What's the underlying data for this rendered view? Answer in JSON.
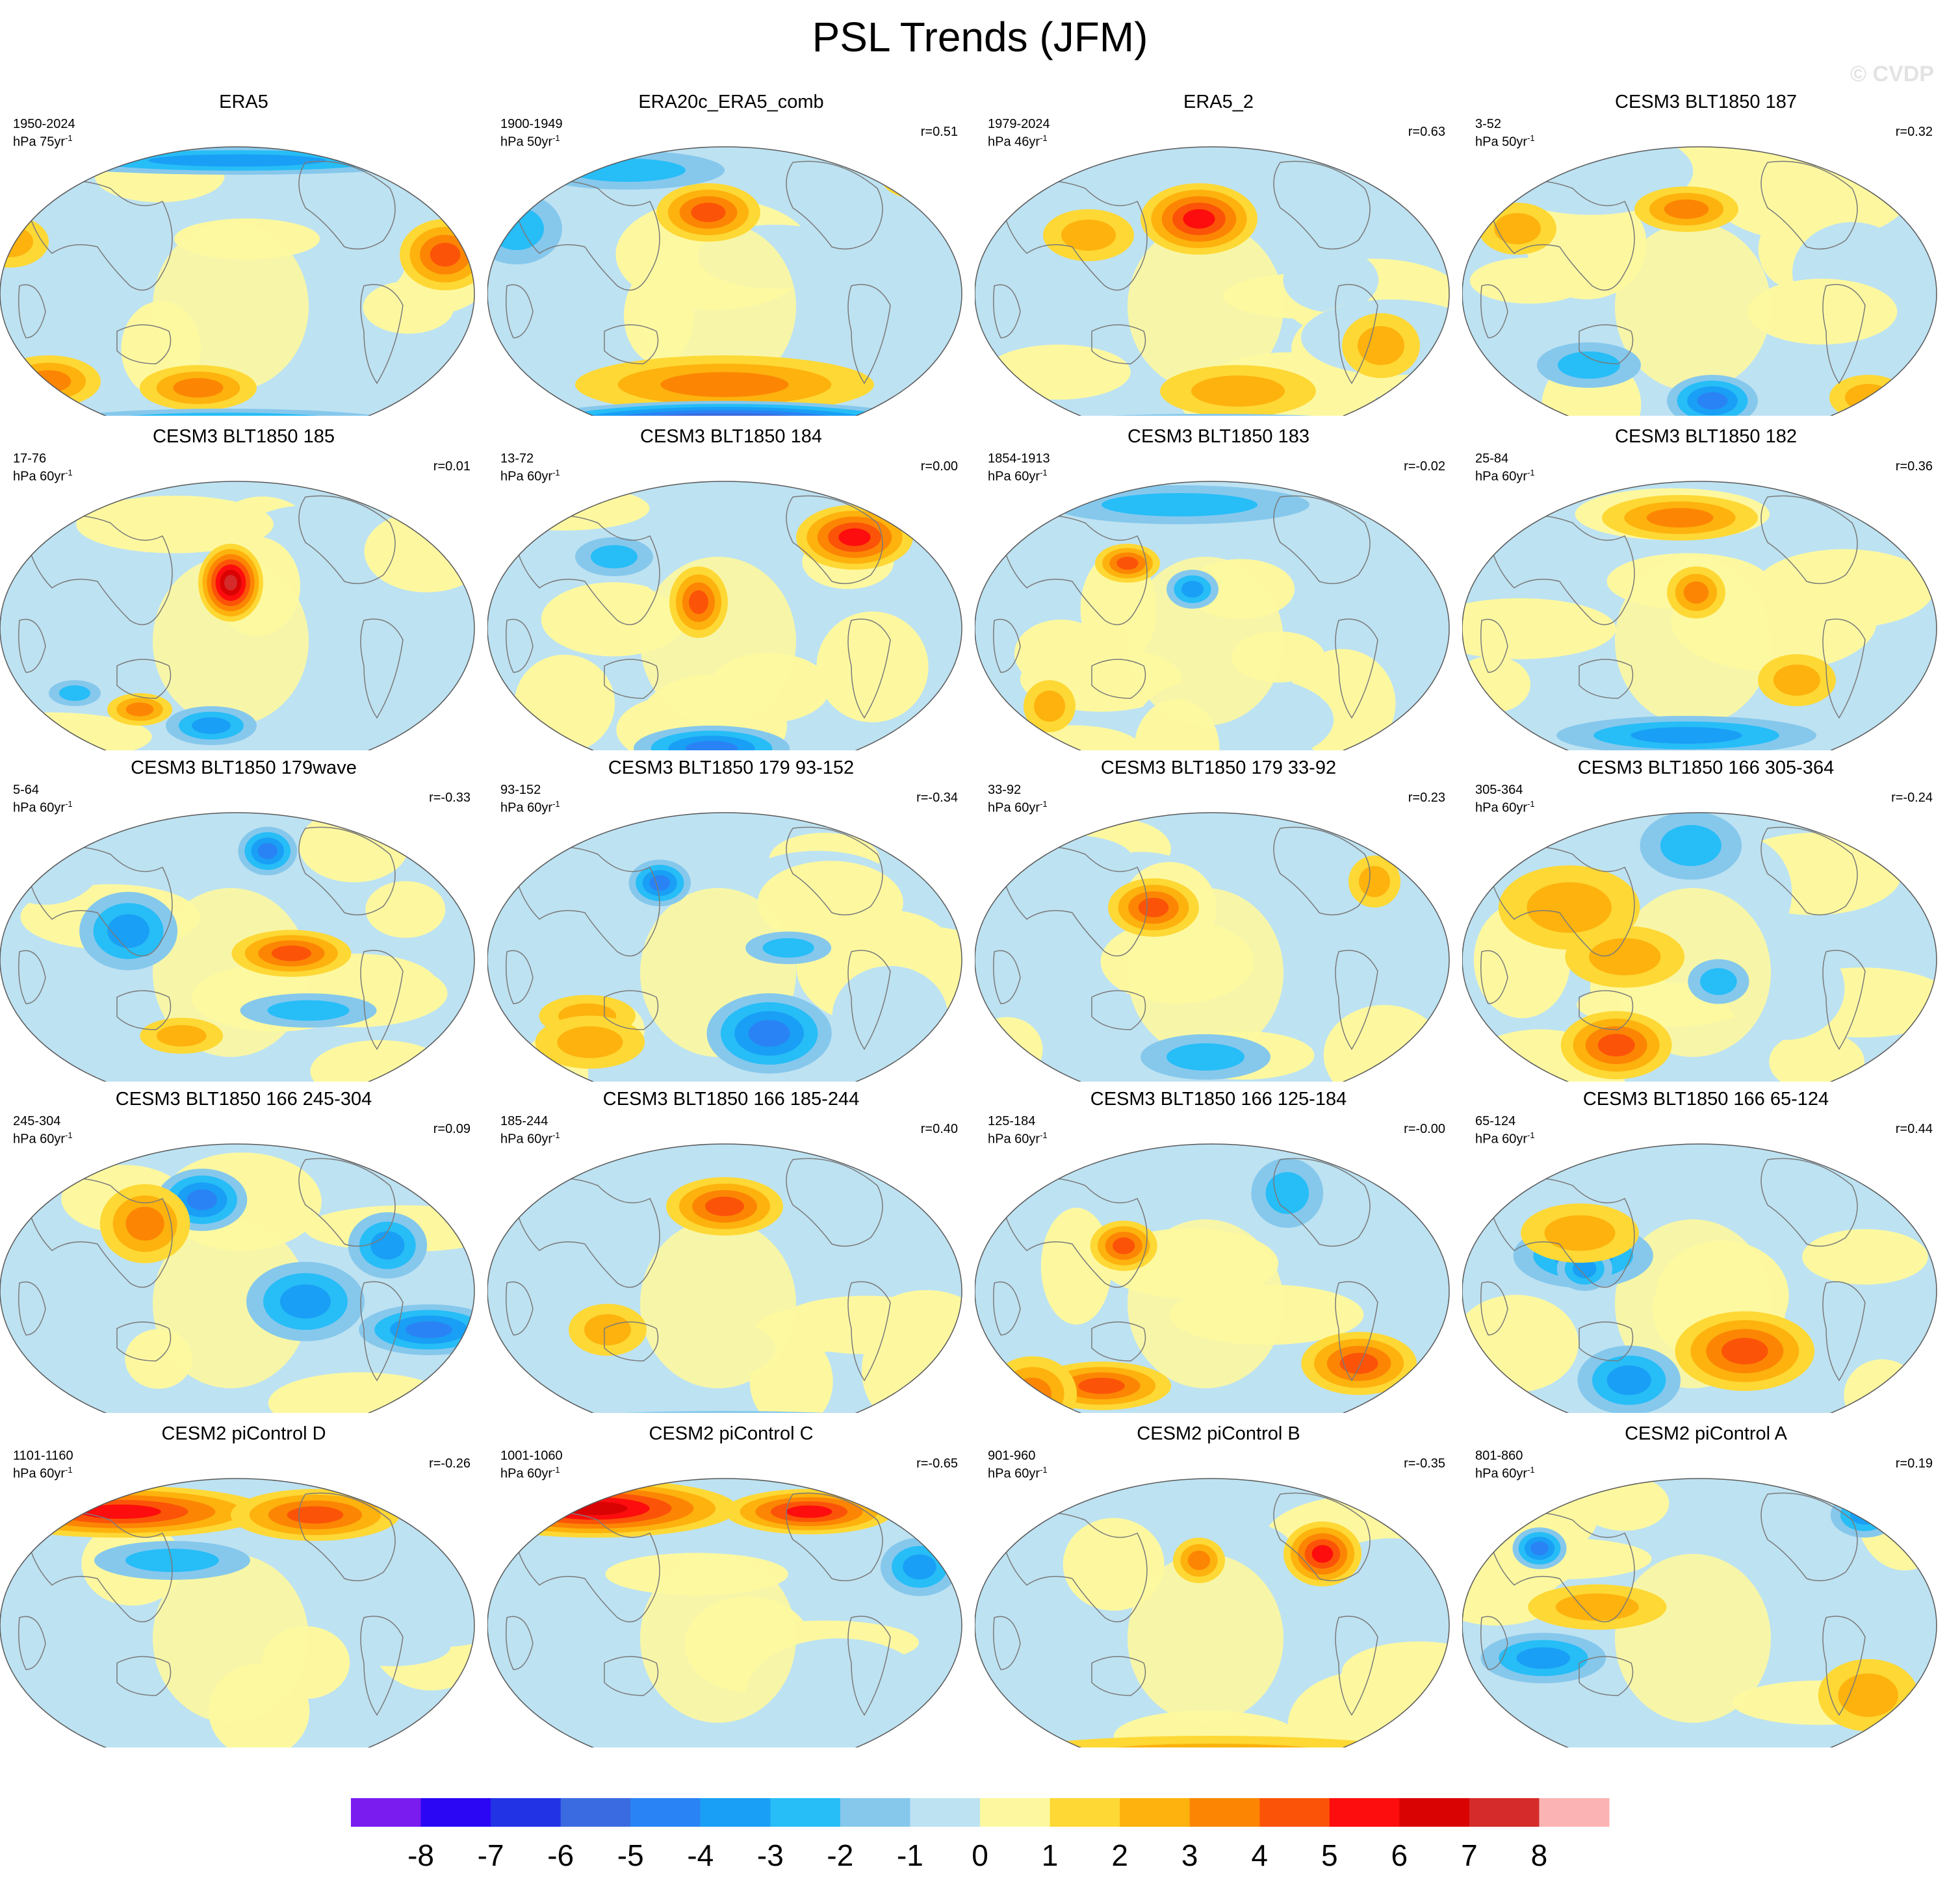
{
  "title": "PSL Trends (JFM)",
  "watermark": "© CVDP",
  "colors": {
    "scale": [
      "#7a1bf0",
      "#2a06f5",
      "#2233e6",
      "#3b6be0",
      "#2a83f4",
      "#199ff5",
      "#27bdf7",
      "#86c8ec",
      "#bde2f2",
      "#fdf8a0",
      "#fed835",
      "#fdb20e",
      "#fc8604",
      "#fb5408",
      "#fd0d0d",
      "#da0303",
      "#d52b2b",
      "#fcb3b3"
    ],
    "coastline": "#7a7a7a",
    "border": "#5a5a5a"
  },
  "colorbar": {
    "labels": [
      "-8",
      "-7",
      "-6",
      "-5",
      "-4",
      "-3",
      "-2",
      "-1",
      "0",
      "1",
      "2",
      "3",
      "4",
      "5",
      "6",
      "7",
      "8"
    ]
  },
  "panels": [
    {
      "title": "ERA5",
      "years": "1950-2024",
      "units": "hPa 75yr",
      "units_exp": "-1",
      "r": ""
    },
    {
      "title": "ERA20c_ERA5_comb",
      "years": "1900-1949",
      "units": "hPa 50yr",
      "units_exp": "-1",
      "r": "r=0.51"
    },
    {
      "title": "ERA5_2",
      "years": "1979-2024",
      "units": "hPa 46yr",
      "units_exp": "-1",
      "r": "r=0.63"
    },
    {
      "title": "CESM3 BLT1850 187",
      "years": "3-52",
      "units": "hPa 50yr",
      "units_exp": "-1",
      "r": "r=0.32"
    },
    {
      "title": "CESM3 BLT1850 185",
      "years": "17-76",
      "units": "hPa 60yr",
      "units_exp": "-1",
      "r": "r=0.01"
    },
    {
      "title": "CESM3 BLT1850 184",
      "years": "13-72",
      "units": "hPa 60yr",
      "units_exp": "-1",
      "r": "r=0.00"
    },
    {
      "title": "CESM3 BLT1850 183",
      "years": "1854-1913",
      "units": "hPa 60yr",
      "units_exp": "-1",
      "r": "r=-0.02"
    },
    {
      "title": "CESM3 BLT1850 182",
      "years": "25-84",
      "units": "hPa 60yr",
      "units_exp": "-1",
      "r": "r=0.36"
    },
    {
      "title": "CESM3 BLT1850 179wave",
      "years": "5-64",
      "units": "hPa 60yr",
      "units_exp": "-1",
      "r": "r=-0.33"
    },
    {
      "title": "CESM3 BLT1850 179 93-152",
      "years": "93-152",
      "units": "hPa 60yr",
      "units_exp": "-1",
      "r": "r=-0.34"
    },
    {
      "title": "CESM3 BLT1850 179 33-92",
      "years": "33-92",
      "units": "hPa 60yr",
      "units_exp": "-1",
      "r": "r=0.23"
    },
    {
      "title": "CESM3 BLT1850 166 305-364",
      "years": "305-364",
      "units": "hPa 60yr",
      "units_exp": "-1",
      "r": "r=-0.24"
    },
    {
      "title": "CESM3 BLT1850 166 245-304",
      "years": "245-304",
      "units": "hPa 60yr",
      "units_exp": "-1",
      "r": "r=0.09"
    },
    {
      "title": "CESM3 BLT1850 166 185-244",
      "years": "185-244",
      "units": "hPa 60yr",
      "units_exp": "-1",
      "r": "r=0.40"
    },
    {
      "title": "CESM3 BLT1850 166 125-184",
      "years": "125-184",
      "units": "hPa 60yr",
      "units_exp": "-1",
      "r": "r=-0.00"
    },
    {
      "title": "CESM3 BLT1850 166 65-124",
      "years": "65-124",
      "units": "hPa 60yr",
      "units_exp": "-1",
      "r": "r=0.44"
    },
    {
      "title": "CESM2 piControl D",
      "years": "1101-1160",
      "units": "hPa 60yr",
      "units_exp": "-1",
      "r": "r=-0.26"
    },
    {
      "title": "CESM2 piControl C",
      "years": "1001-1060",
      "units": "hPa 60yr",
      "units_exp": "-1",
      "r": "r=-0.65"
    },
    {
      "title": "CESM2 piControl B",
      "years": "901-960",
      "units": "hPa 60yr",
      "units_exp": "-1",
      "r": "r=-0.35"
    },
    {
      "title": "CESM2 piControl A",
      "years": "801-860",
      "units": "hPa 60yr",
      "units_exp": "-1",
      "r": "r=0.19"
    }
  ]
}
